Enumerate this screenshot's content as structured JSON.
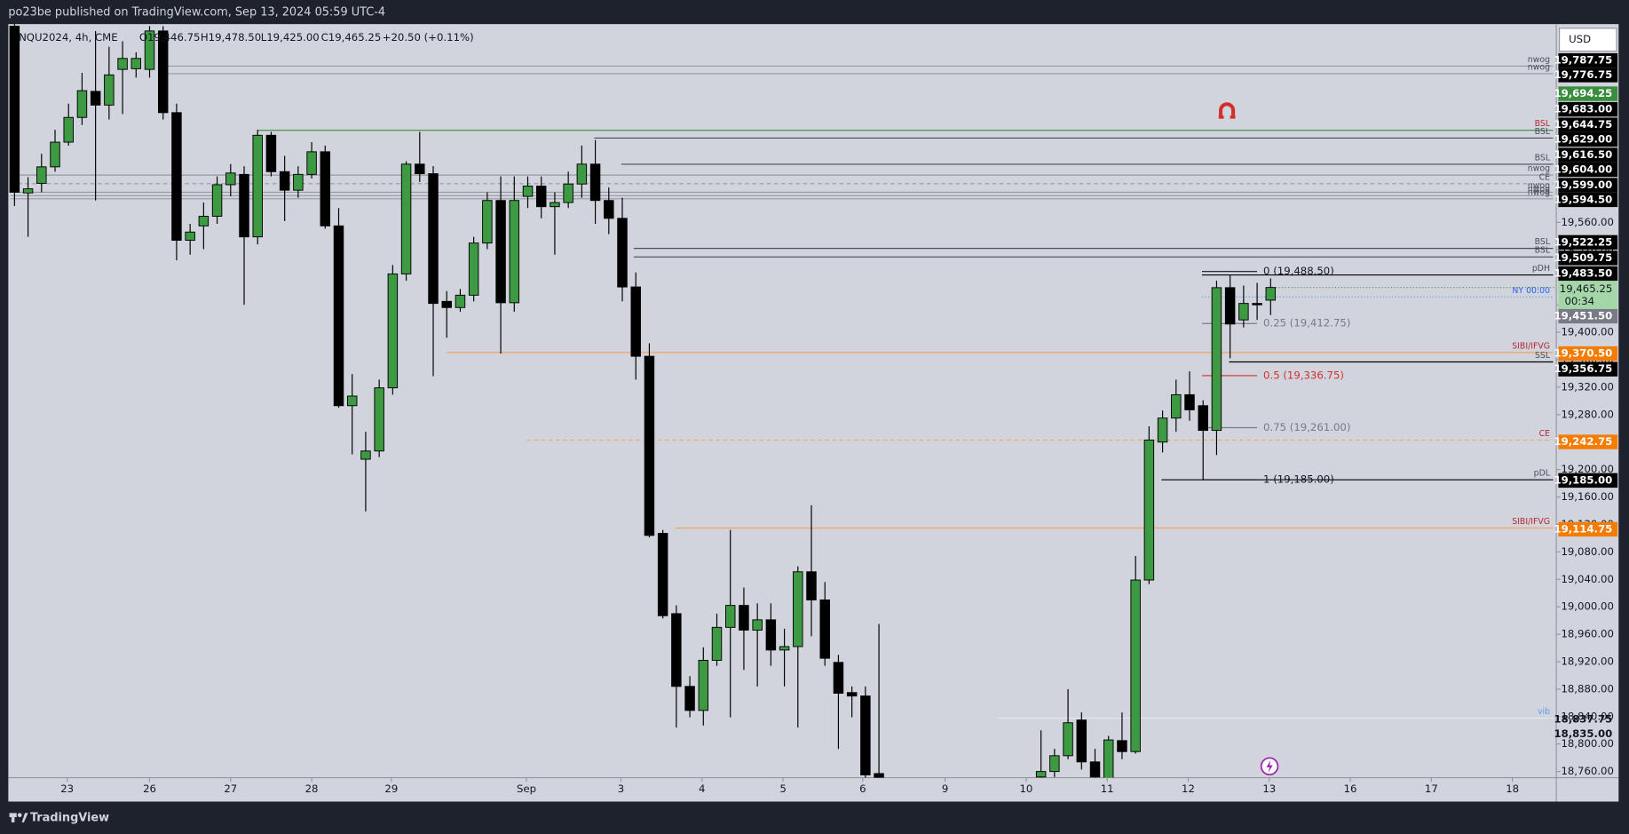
{
  "header": {
    "publisher": "po23be published on TradingView.com, Sep 13, 2024 05:59 UTC-4",
    "symbol": "NQU2024, 4h, CME",
    "open": "O19,446.75",
    "high": "H19,478.50",
    "low": "L19,425.00",
    "close": "C19,465.25",
    "change": "+20.50 (+0.11%)",
    "currency": "USD",
    "brand": "TradingView"
  },
  "chart_data": {
    "type": "candlestick",
    "up_color": "#3d9a42",
    "down_color": "#000000",
    "x": [
      0,
      1,
      2,
      3,
      4,
      5,
      6,
      7,
      8,
      9,
      10,
      11,
      12,
      13,
      14,
      15,
      16,
      17,
      18,
      19,
      20,
      21,
      22,
      23,
      24,
      25,
      26,
      27,
      28,
      29,
      30,
      31,
      32,
      33,
      34,
      35,
      36,
      37,
      38,
      39,
      40,
      41,
      42,
      43,
      44,
      45,
      46,
      47,
      48,
      49,
      50,
      51,
      52,
      53,
      54,
      55,
      56,
      57,
      58,
      59,
      60,
      61,
      62,
      63,
      64,
      76,
      77,
      78,
      79,
      80,
      81,
      82,
      83,
      84,
      85,
      86,
      87,
      88,
      89,
      90,
      91,
      92,
      93
    ],
    "open": [
      19846,
      19603,
      19617,
      19641,
      19677,
      19713,
      19751,
      19731,
      19783,
      19784,
      19783,
      19839,
      19720,
      19534,
      19555,
      19569,
      19615,
      19630,
      19539,
      19687,
      19634,
      19607,
      19630,
      19663,
      19555,
      19293,
      19215,
      19227,
      19319,
      19485,
      19645,
      19631,
      19445,
      19436,
      19454,
      19530,
      19592,
      19443,
      19598,
      19613,
      19583,
      19589,
      19616,
      19645,
      19592,
      19566,
      19466,
      19365,
      19107,
      18990,
      18884,
      18849,
      18922,
      18970,
      19002,
      18966,
      18981,
      18937,
      18942,
      19051,
      19010,
      18919,
      18875,
      18870,
      18757,
      18752,
      18760,
      18783,
      18835,
      18774,
      18748,
      18805,
      18789,
      19039,
      19240,
      19275,
      19309,
      19293,
      19257,
      19465,
      19418,
      19442,
      19446.75
    ],
    "high": [
      19860,
      19626,
      19660,
      19695,
      19733,
      19778,
      19839,
      19816,
      19824,
      19808,
      19846,
      19846,
      19733,
      19558,
      19589,
      19627,
      19645,
      19642,
      19695,
      19692,
      19657,
      19642,
      19677,
      19672,
      19581,
      19339,
      19255,
      19331,
      19498,
      19649,
      19692,
      19642,
      19460,
      19463,
      19539,
      19604,
      19627,
      19627,
      19627,
      19627,
      19604,
      19634,
      19672,
      19680,
      19611,
      19596,
      19487,
      19384,
      19112,
      19002,
      18899,
      18941,
      18990,
      19112,
      19028,
      19005,
      19005,
      18968,
      19059,
      19148,
      19036,
      18930,
      18884,
      18884,
      18975,
      18820,
      18793,
      18880,
      18846,
      18793,
      18812,
      18846,
      19074,
      19263,
      19286,
      19331,
      19343,
      19301,
      19475,
      19483,
      19468,
      19472,
      19478.5
    ],
    "low": [
      19584,
      19539,
      19604,
      19634,
      19672,
      19702,
      19592,
      19710,
      19718,
      19771,
      19771,
      19710,
      19505,
      19513,
      19521,
      19558,
      19598,
      19440,
      19528,
      19627,
      19562,
      19596,
      19624,
      19551,
      19290,
      19222,
      19139,
      19218,
      19309,
      19475,
      19619,
      19336,
      19392,
      19430,
      19445,
      19521,
      19369,
      19430,
      19581,
      19566,
      19513,
      19581,
      19596,
      19558,
      19543,
      19445,
      19331,
      19101,
      18983,
      18824,
      18839,
      18827,
      18914,
      18839,
      18908,
      18884,
      18914,
      18884,
      18824,
      18957,
      18914,
      18793,
      18839,
      18748,
      18745,
      18750,
      18752,
      18778,
      18763,
      18748,
      18745,
      18778,
      18786,
      19033,
      19225,
      19255,
      19271,
      19185,
      19221,
      19362,
      19407,
      19418,
      19425
    ],
    "close": [
      19604,
      19609,
      19641,
      19677,
      19713,
      19752,
      19731,
      19775,
      19799,
      19799,
      19839,
      19720,
      19534,
      19546,
      19569,
      19615,
      19632,
      19539,
      19687,
      19634,
      19607,
      19630,
      19663,
      19555,
      19293,
      19307,
      19227,
      19319,
      19485,
      19645,
      19631,
      19442,
      19436,
      19454,
      19530,
      19592,
      19443,
      19592,
      19613,
      19583,
      19589,
      19616,
      19645,
      19592,
      19566,
      19466,
      19365,
      19104,
      18987,
      18884,
      18849,
      18922,
      18970,
      19002,
      18966,
      18981,
      18937,
      18942,
      19051,
      19010,
      18925,
      18874,
      18870,
      18755,
      18748,
      18760,
      18783,
      18831,
      18774,
      18752,
      18806,
      18789,
      19039,
      19243,
      19275,
      19309,
      19287,
      19257,
      19465,
      19412,
      19442,
      19440,
      19465.25
    ],
    "xlim": [
      -0.46,
      114.15
    ],
    "xticks": [
      {
        "value": 3.9,
        "label": "23"
      },
      {
        "value": 10,
        "label": "26"
      },
      {
        "value": 16,
        "label": "27"
      },
      {
        "value": 22,
        "label": "28"
      },
      {
        "value": 27.9,
        "label": "29"
      },
      {
        "value": 37.9,
        "label": "Sep"
      },
      {
        "value": 44.9,
        "label": "3"
      },
      {
        "value": 50.9,
        "label": "4"
      },
      {
        "value": 56.9,
        "label": "5"
      },
      {
        "value": 62.8,
        "label": "6"
      },
      {
        "value": 68.9,
        "label": "9"
      },
      {
        "value": 74.9,
        "label": "10"
      },
      {
        "value": 80.9,
        "label": "11"
      },
      {
        "value": 86.9,
        "label": "12"
      },
      {
        "value": 92.9,
        "label": "13"
      },
      {
        "value": 98.9,
        "label": "16"
      },
      {
        "value": 104.9,
        "label": "17"
      },
      {
        "value": 110.9,
        "label": "18"
      }
    ],
    "ylim": [
      18751,
      19849
    ],
    "yticks": [
      {
        "value": 18760,
        "label": "18,760.00"
      },
      {
        "value": 18800,
        "label": "18,800.00"
      },
      {
        "value": 18840,
        "label": "18,840.00"
      },
      {
        "value": 18880,
        "label": "18,880.00"
      },
      {
        "value": 18920,
        "label": "18,920.00"
      },
      {
        "value": 18960,
        "label": "18,960.00"
      },
      {
        "value": 19000,
        "label": "19,000.00"
      },
      {
        "value": 19040,
        "label": "19,040.00"
      },
      {
        "value": 19080,
        "label": "19,080.00"
      },
      {
        "value": 19120,
        "label": "19,120.00"
      },
      {
        "value": 19160,
        "label": "19,160.00"
      },
      {
        "value": 19200,
        "label": "19,200.00"
      },
      {
        "value": 19240,
        "label": "19,240.00"
      },
      {
        "value": 19280,
        "label": "19,280.00"
      },
      {
        "value": 19320,
        "label": "19,320.00"
      },
      {
        "value": 19360,
        "label": "19,360.00"
      },
      {
        "value": 19400,
        "label": "19,400.00"
      },
      {
        "value": 19440,
        "label": "19,440.00"
      },
      {
        "value": 19480,
        "label": "19,480.00"
      },
      {
        "value": 19520,
        "label": "19,520.00"
      },
      {
        "value": 19560,
        "label": "19,560.00"
      }
    ],
    "levels": [
      {
        "value": 19787.75,
        "label": "19,787.75",
        "tag": "nwog",
        "color": "#000000",
        "line": "#9598a1"
      },
      {
        "value": 19776.75,
        "label": "19,776.75",
        "tag": "nwog",
        "color": "#000000",
        "line": "#9598a1"
      },
      {
        "value": 19694.25,
        "label": "19,694.25",
        "tag": "BSL",
        "color": "#388e3c",
        "line": "#388e3c",
        "tag_color": "#b22833"
      },
      {
        "value": 19683,
        "label": "19,683.00",
        "tag": "BSL",
        "color": "#000000",
        "line": "#4a4d57"
      },
      {
        "value": 19644.75,
        "label": "19,644.75",
        "tag": "BSL",
        "color": "#000000",
        "line": "#4a4d57"
      },
      {
        "value": 19629,
        "label": "19,629.00",
        "tag": "nwog",
        "color": "#000000",
        "line": "#9598a1"
      },
      {
        "value": 19616.5,
        "label": "19,616.50",
        "tag": "CE",
        "color": "#000000",
        "line": "#9598a1",
        "style": "dashed"
      },
      {
        "value": 19604,
        "label": "19,604.00",
        "tag": "nwog",
        "color": "#000000",
        "line": "#9598a1"
      },
      {
        "value": 19599,
        "label": "19,599.00",
        "tag": "nwog",
        "color": "#000000",
        "line": "#9598a1"
      },
      {
        "value": 19594.5,
        "label": "19,594.50",
        "tag": "nwog",
        "color": "#000000",
        "line": "#9598a1"
      },
      {
        "value": 19522.25,
        "label": "19,522.25",
        "tag": "BSL",
        "color": "#000000",
        "line": "#4a4d57"
      },
      {
        "value": 19509.75,
        "label": "19,509.75",
        "tag": "BSL",
        "color": "#000000",
        "line": "#4a4d57"
      },
      {
        "value": 19483.5,
        "label": "19,483.50",
        "tag": "pDH",
        "color": "#000000",
        "line": "#000000"
      },
      {
        "value": 19451.5,
        "label": "19,451.50",
        "tag": "NY 00:00",
        "color": "#787b86",
        "line": "#5b9cf6",
        "style": "dotted",
        "tag_color": "#2962ff"
      },
      {
        "value": 19370.5,
        "label": "19,370.50",
        "tag": "SIBI/IFVG",
        "color": "#f57c00",
        "line": "#f5a25e",
        "tag_color": "#b22833"
      },
      {
        "value": 19356.75,
        "label": "19,356.75",
        "tag": "SSL",
        "color": "#000000",
        "line": "#000000"
      },
      {
        "value": 19242.75,
        "label": "19,242.75",
        "tag": "CE",
        "color": "#f57c00",
        "line": "#f5a25e",
        "style": "dashed",
        "tag_color": "#b22833"
      },
      {
        "value": 19185,
        "label": "19,185.00",
        "tag": "pDL",
        "color": "#000000",
        "line": "#000000"
      },
      {
        "value": 19114.75,
        "label": "19,114.75",
        "tag": "SIBI/IFVG",
        "color": "#f57c00",
        "line": "#f5a25e",
        "tag_color": "#b22833"
      },
      {
        "value": 18837.75,
        "label": "18,837.75",
        "tag": "vib",
        "line": "#e6e8ee",
        "tag_color": "#5b9cf6"
      },
      {
        "value": 18835,
        "label": "18,835.00"
      }
    ],
    "fib": [
      {
        "value": 19488.5,
        "label": "0 (19,488.50)",
        "color": "#131722"
      },
      {
        "value": 19412.75,
        "label": "0.25 (19,412.75)",
        "color": "#787b86"
      },
      {
        "value": 19336.75,
        "label": "0.5 (19,336.75)",
        "color": "#d32f2f"
      },
      {
        "value": 19261,
        "label": "0.75 (19,261.00)",
        "color": "#787b86"
      },
      {
        "value": 19185,
        "label": "1 (19,185.00)",
        "color": "#131722"
      }
    ],
    "last": {
      "value": 19465.25,
      "label": "19,465.25",
      "countdown": "00:34",
      "color": "#a5d6a7"
    }
  }
}
